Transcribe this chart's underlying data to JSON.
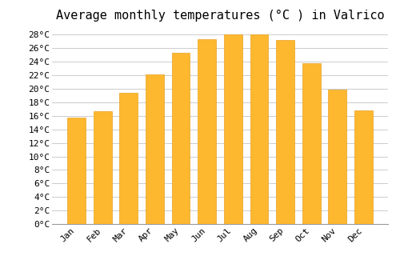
{
  "title": "Average monthly temperatures (°C ) in Valrico",
  "months": [
    "Jan",
    "Feb",
    "Mar",
    "Apr",
    "May",
    "Jun",
    "Jul",
    "Aug",
    "Sep",
    "Oct",
    "Nov",
    "Dec"
  ],
  "values": [
    15.8,
    16.7,
    19.4,
    22.1,
    25.3,
    27.3,
    28.0,
    28.0,
    27.2,
    23.8,
    19.9,
    16.8
  ],
  "bar_color_face": "#FDB830",
  "bar_color_edge": "#E8A020",
  "background_color": "#FFFFFF",
  "grid_color": "#CCCCCC",
  "ylim": [
    0,
    29
  ],
  "ytick_step": 2,
  "title_fontsize": 11,
  "tick_fontsize": 8,
  "font_family": "monospace"
}
